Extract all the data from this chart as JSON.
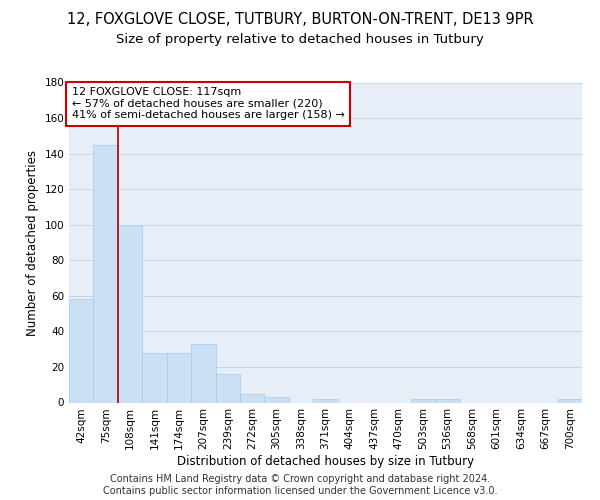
{
  "title_line1": "12, FOXGLOVE CLOSE, TUTBURY, BURTON-ON-TRENT, DE13 9PR",
  "title_line2": "Size of property relative to detached houses in Tutbury",
  "xlabel": "Distribution of detached houses by size in Tutbury",
  "ylabel": "Number of detached properties",
  "categories": [
    "42sqm",
    "75sqm",
    "108sqm",
    "141sqm",
    "174sqm",
    "207sqm",
    "239sqm",
    "272sqm",
    "305sqm",
    "338sqm",
    "371sqm",
    "404sqm",
    "437sqm",
    "470sqm",
    "503sqm",
    "536sqm",
    "568sqm",
    "601sqm",
    "634sqm",
    "667sqm",
    "700sqm"
  ],
  "values": [
    58,
    145,
    100,
    28,
    28,
    33,
    16,
    5,
    3,
    0,
    2,
    0,
    0,
    0,
    2,
    2,
    0,
    0,
    0,
    0,
    2
  ],
  "bar_color": "#cce0f5",
  "bar_edge_color": "#a8c8e8",
  "grid_color": "#c8d4e8",
  "background_color": "#e8eef8",
  "vline_x_index": 2,
  "vline_color": "#aa0000",
  "annotation_text": "12 FOXGLOVE CLOSE: 117sqm\n← 57% of detached houses are smaller (220)\n41% of semi-detached houses are larger (158) →",
  "annotation_box_color": "#ffffff",
  "annotation_box_edge": "#cc0000",
  "ylim": [
    0,
    180
  ],
  "yticks": [
    0,
    20,
    40,
    60,
    80,
    100,
    120,
    140,
    160,
    180
  ],
  "footer": "Contains HM Land Registry data © Crown copyright and database right 2024.\nContains public sector information licensed under the Government Licence v3.0.",
  "title_fontsize": 10.5,
  "subtitle_fontsize": 9.5,
  "axis_label_fontsize": 8.5,
  "tick_fontsize": 7.5,
  "annotation_fontsize": 8,
  "footer_fontsize": 7
}
